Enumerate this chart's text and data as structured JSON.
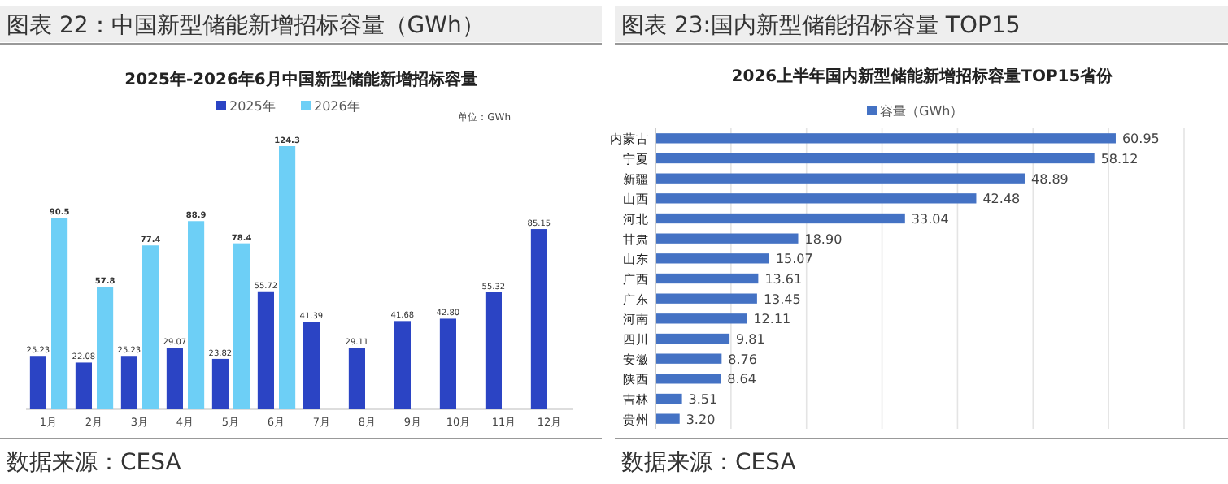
{
  "chart_data": [
    {
      "type": "bar",
      "title": "图表 22：中国新型储能新增招标容量（GWh）",
      "subtitle": "2025年-2026年6月中国新型储能新增招标容量",
      "categories": [
        "1月",
        "2月",
        "3月",
        "4月",
        "5月",
        "6月",
        "7月",
        "8月",
        "9月",
        "10月",
        "11月",
        "12月"
      ],
      "series": [
        {
          "name": "2025年",
          "color": "#2b44c4",
          "values": [
            25.23,
            22.08,
            25.23,
            29.07,
            23.82,
            55.72,
            41.39,
            29.11,
            41.68,
            42.8,
            55.32,
            85.15
          ],
          "value_labels": [
            "25.23",
            "22.08",
            "25.23",
            "29.07",
            "23.82",
            "55.72",
            "41.39",
            "29.11",
            "41.68",
            "42.80",
            "55.32",
            "85.15"
          ]
        },
        {
          "name": "2026年",
          "color": "#6dcff6",
          "values": [
            90.5,
            57.8,
            77.4,
            88.9,
            78.4,
            124.3,
            null,
            null,
            null,
            null,
            null,
            null
          ],
          "value_labels": [
            "90.5",
            "57.8",
            "77.4",
            "88.9",
            "78.4",
            "124.3",
            null,
            null,
            null,
            null,
            null,
            null
          ]
        }
      ],
      "legend": "top",
      "tick_labels": "x",
      "annotations": [
        "单位：GWh",
        "数据来源：CESA"
      ]
    },
    {
      "type": "bar",
      "orientation": "horizontal",
      "title": "图表 23:国内新型储能招标容量 TOP15",
      "subtitle": "2026上半年国内新型储能新增招标容量TOP15省份",
      "categories": [
        "内蒙古",
        "宁夏",
        "新疆",
        "山西",
        "河北",
        "甘肃",
        "山东",
        "广西",
        "广东",
        "河南",
        "四川",
        "安徽",
        "陕西",
        "吉林",
        "贵州"
      ],
      "series": [
        {
          "name": "容量（GWh）",
          "color": "#4472c4",
          "values": [
            60.95,
            58.12,
            48.89,
            42.48,
            33.04,
            18.9,
            15.07,
            13.61,
            13.45,
            12.11,
            9.81,
            8.76,
            8.64,
            3.51,
            3.2
          ],
          "value_labels": [
            "60.95",
            "58.12",
            "48.89",
            "42.48",
            "33.04",
            "18.90",
            "15.07",
            "13.61",
            "13.45",
            "12.11",
            "9.81",
            "8.76",
            "8.64",
            "3.51",
            "3.20"
          ]
        }
      ],
      "xlim": [
        0,
        70
      ],
      "xticks": [
        {
          "value": 0,
          "label": null
        },
        {
          "value": 10,
          "label": null
        },
        {
          "value": 20,
          "label": null
        },
        {
          "value": 30,
          "label": null
        },
        {
          "value": 40,
          "label": null
        },
        {
          "value": 50,
          "label": null
        },
        {
          "value": 60,
          "label": null
        },
        {
          "value": 70,
          "label": null
        }
      ],
      "grid": "x",
      "tick_labels": "y",
      "legend": "top",
      "annotations": [
        "数据来源：CESA"
      ]
    }
  ]
}
